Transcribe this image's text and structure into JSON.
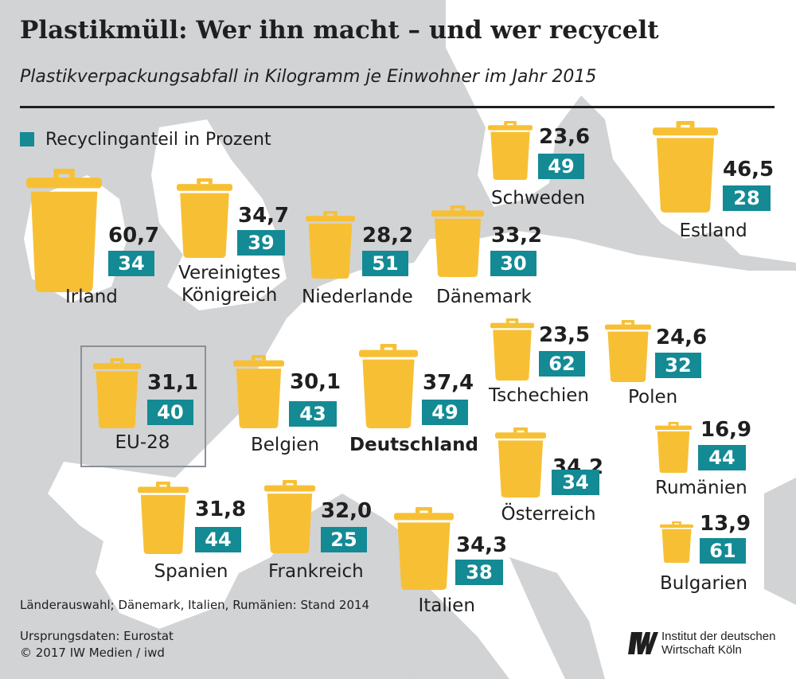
{
  "header": {
    "title": "Plastikmüll: Wer ihn macht – und wer recycelt",
    "subtitle": "Plastikverpackungsabfall in Kilogramm je Einwohner im Jahr 2015"
  },
  "legend": {
    "label": "Recyclinganteil in Prozent"
  },
  "colors": {
    "bin": "#f7c034",
    "badge": "#138a94",
    "land": "#ffffff",
    "water": "#d2d3d5"
  },
  "chart_data": {
    "type": "table",
    "title": "Plastikmüll: Wer ihn macht – und wer recycelt",
    "subtitle": "Plastikverpackungsabfall in Kilogramm je Einwohner im Jahr 2015",
    "fields": [
      "Plastikverpackungsabfall (kg je Einwohner)",
      "Recyclinganteil in Prozent"
    ],
    "rows": [
      {
        "name": "Irland",
        "waste": "60,7",
        "recycling": "34"
      },
      {
        "name": "Vereinigtes Königreich",
        "waste": "34,7",
        "recycling": "39"
      },
      {
        "name": "Niederlande",
        "waste": "28,2",
        "recycling": "51"
      },
      {
        "name": "Dänemark",
        "waste": "33,2",
        "recycling": "30"
      },
      {
        "name": "Schweden",
        "waste": "23,6",
        "recycling": "49"
      },
      {
        "name": "Estland",
        "waste": "46,5",
        "recycling": "28"
      },
      {
        "name": "EU-28",
        "waste": "31,1",
        "recycling": "40"
      },
      {
        "name": "Belgien",
        "waste": "30,1",
        "recycling": "43"
      },
      {
        "name": "Deutschland",
        "waste": "37,4",
        "recycling": "49"
      },
      {
        "name": "Tschechien",
        "waste": "23,5",
        "recycling": "62"
      },
      {
        "name": "Polen",
        "waste": "24,6",
        "recycling": "32"
      },
      {
        "name": "Österreich",
        "waste": "34,2",
        "recycling": "34"
      },
      {
        "name": "Rumänien",
        "waste": "16,9",
        "recycling": "44"
      },
      {
        "name": "Spanien",
        "waste": "31,8",
        "recycling": "44"
      },
      {
        "name": "Frankreich",
        "waste": "32,0",
        "recycling": "25"
      },
      {
        "name": "Italien",
        "waste": "34,3",
        "recycling": "38"
      },
      {
        "name": "Bulgarien",
        "waste": "13,9",
        "recycling": "61"
      }
    ]
  },
  "footer": {
    "note": "Länderauswahl; Dänemark, Italien, Rumänien: Stand 2014",
    "source": "Ursprungsdaten: Eurostat",
    "copyright": "© 2017 IW Medien / iwd",
    "logo_line1": "Institut der deutschen",
    "logo_line2": "Wirtschaft Köln"
  }
}
